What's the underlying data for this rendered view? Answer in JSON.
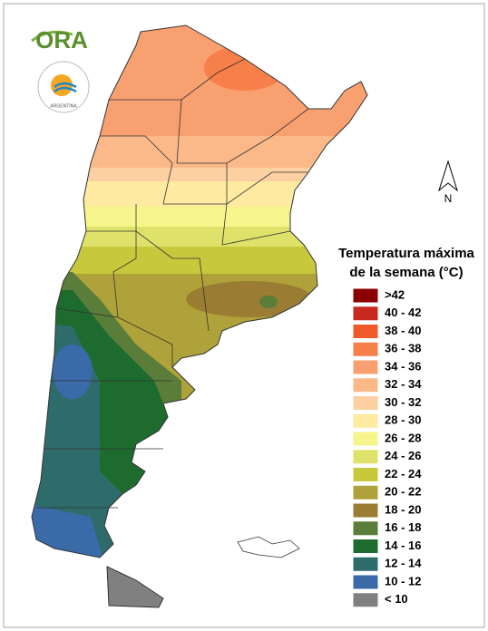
{
  "logos": {
    "ora": "ORA",
    "smn": "ARGENTINA"
  },
  "north_label": "N",
  "legend": {
    "title_lines": [
      "Temperatura máxima",
      "de la semana (°C)"
    ],
    "items": [
      {
        "label": ">42",
        "color": "#8b0000"
      },
      {
        "label": "40 - 42",
        "color": "#c8281e"
      },
      {
        "label": "38 - 40",
        "color": "#f05a28"
      },
      {
        "label": "36 - 38",
        "color": "#f77f4a"
      },
      {
        "label": "34 - 36",
        "color": "#f9a070"
      },
      {
        "label": "32 - 34",
        "color": "#fbb98a"
      },
      {
        "label": "30 - 32",
        "color": "#fdd0a2"
      },
      {
        "label": "28 - 30",
        "color": "#feeaa0"
      },
      {
        "label": "26 - 28",
        "color": "#f5f58c"
      },
      {
        "label": "24 - 26",
        "color": "#dfe26a"
      },
      {
        "label": "22 - 24",
        "color": "#c8c83c"
      },
      {
        "label": "20 - 22",
        "color": "#b0a23a"
      },
      {
        "label": "18 - 20",
        "color": "#9a7d33"
      },
      {
        "label": "16 - 18",
        "color": "#5a7d3a"
      },
      {
        "label": "14 - 16",
        "color": "#1e6b2e"
      },
      {
        "label": "12 - 14",
        "color": "#2e6b6b"
      },
      {
        "label": "10 - 12",
        "color": "#3a6aa8"
      },
      {
        "label": "< 10",
        "color": "#808080"
      }
    ]
  }
}
